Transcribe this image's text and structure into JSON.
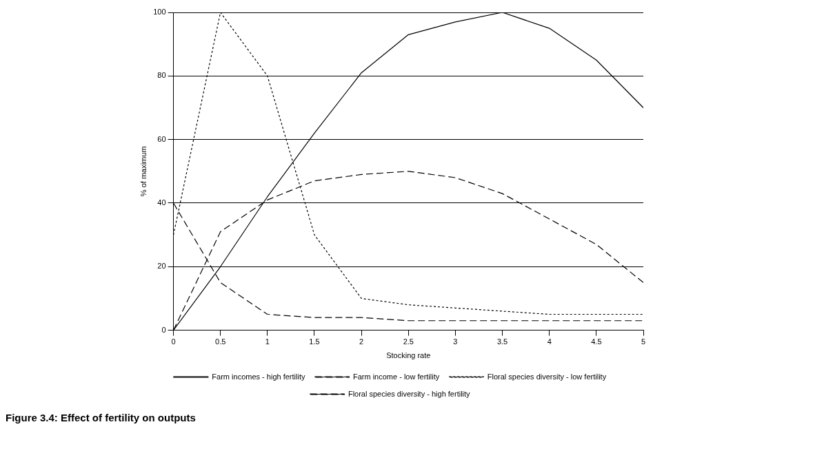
{
  "chart_data": {
    "type": "line",
    "title": "Figure 3.4: Effect of fertility on outputs",
    "xlabel": "Stocking rate",
    "ylabel": "% of maximum",
    "x": [
      0,
      0.5,
      1,
      1.5,
      2,
      2.5,
      3,
      3.5,
      4,
      4.5,
      5
    ],
    "xlim": [
      0,
      5
    ],
    "xticks": [
      0,
      0.5,
      1,
      1.5,
      2,
      2.5,
      3,
      3.5,
      4,
      4.5,
      5
    ],
    "ylim": [
      0,
      100
    ],
    "yticks": [
      0,
      20,
      40,
      60,
      80,
      100
    ],
    "grid": "y",
    "legend": "bottom",
    "marker": "none",
    "series": [
      {
        "name": "Farm incomes - high fertility",
        "color": "#000000",
        "line_style": "solid",
        "values": [
          0,
          20,
          42,
          62,
          81,
          93,
          97,
          100,
          95,
          85,
          70
        ]
      },
      {
        "name": "Farm income - low fertility",
        "color": "#000000",
        "line_style": "dashed",
        "values": [
          0,
          31,
          41,
          47,
          49,
          50,
          48,
          43,
          35,
          27,
          15
        ]
      },
      {
        "name": "Floral species diversity - low fertility",
        "color": "#000000",
        "line_style": "dotted",
        "values": [
          30,
          100,
          80,
          30,
          10,
          8,
          7,
          6,
          5,
          5,
          5
        ]
      },
      {
        "name": "Floral species diversity - high fertility",
        "color": "#000000",
        "line_style": "dashed",
        "values": [
          40,
          15,
          5,
          4,
          4,
          3,
          3,
          3,
          3,
          3,
          3
        ]
      }
    ]
  }
}
